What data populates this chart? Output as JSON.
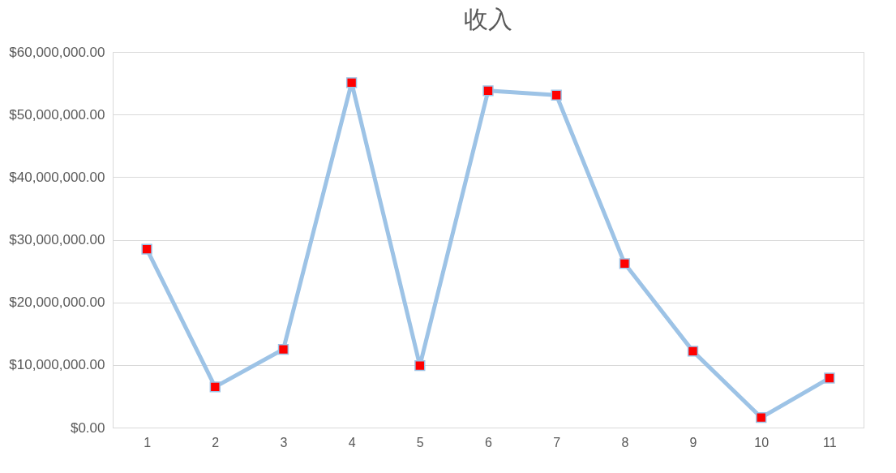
{
  "chart_data": {
    "type": "line",
    "title": "收入",
    "categories": [
      "1",
      "2",
      "3",
      "4",
      "5",
      "6",
      "7",
      "8",
      "9",
      "10",
      "11"
    ],
    "series": [
      {
        "color": "#9dc3e6",
        "values": [
          28500000,
          6500000,
          12500000,
          55100000,
          9900000,
          53800000,
          53100000,
          26200000,
          12200000,
          1600000,
          7900000
        ]
      }
    ],
    "ylim": [
      0,
      60000000
    ],
    "yticks": [
      {
        "value": 0,
        "label": "$0.00"
      },
      {
        "value": 10000000,
        "label": "$10,000,000.00"
      },
      {
        "value": 20000000,
        "label": "$20,000,000.00"
      },
      {
        "value": 30000000,
        "label": "$30,000,000.00"
      },
      {
        "value": 40000000,
        "label": "$40,000,000.00"
      },
      {
        "value": 50000000,
        "label": "$50,000,000.00"
      },
      {
        "value": 60000000,
        "label": "$60,000,000.00"
      }
    ],
    "grid": "y",
    "marker": "square",
    "line_style": "solid"
  }
}
